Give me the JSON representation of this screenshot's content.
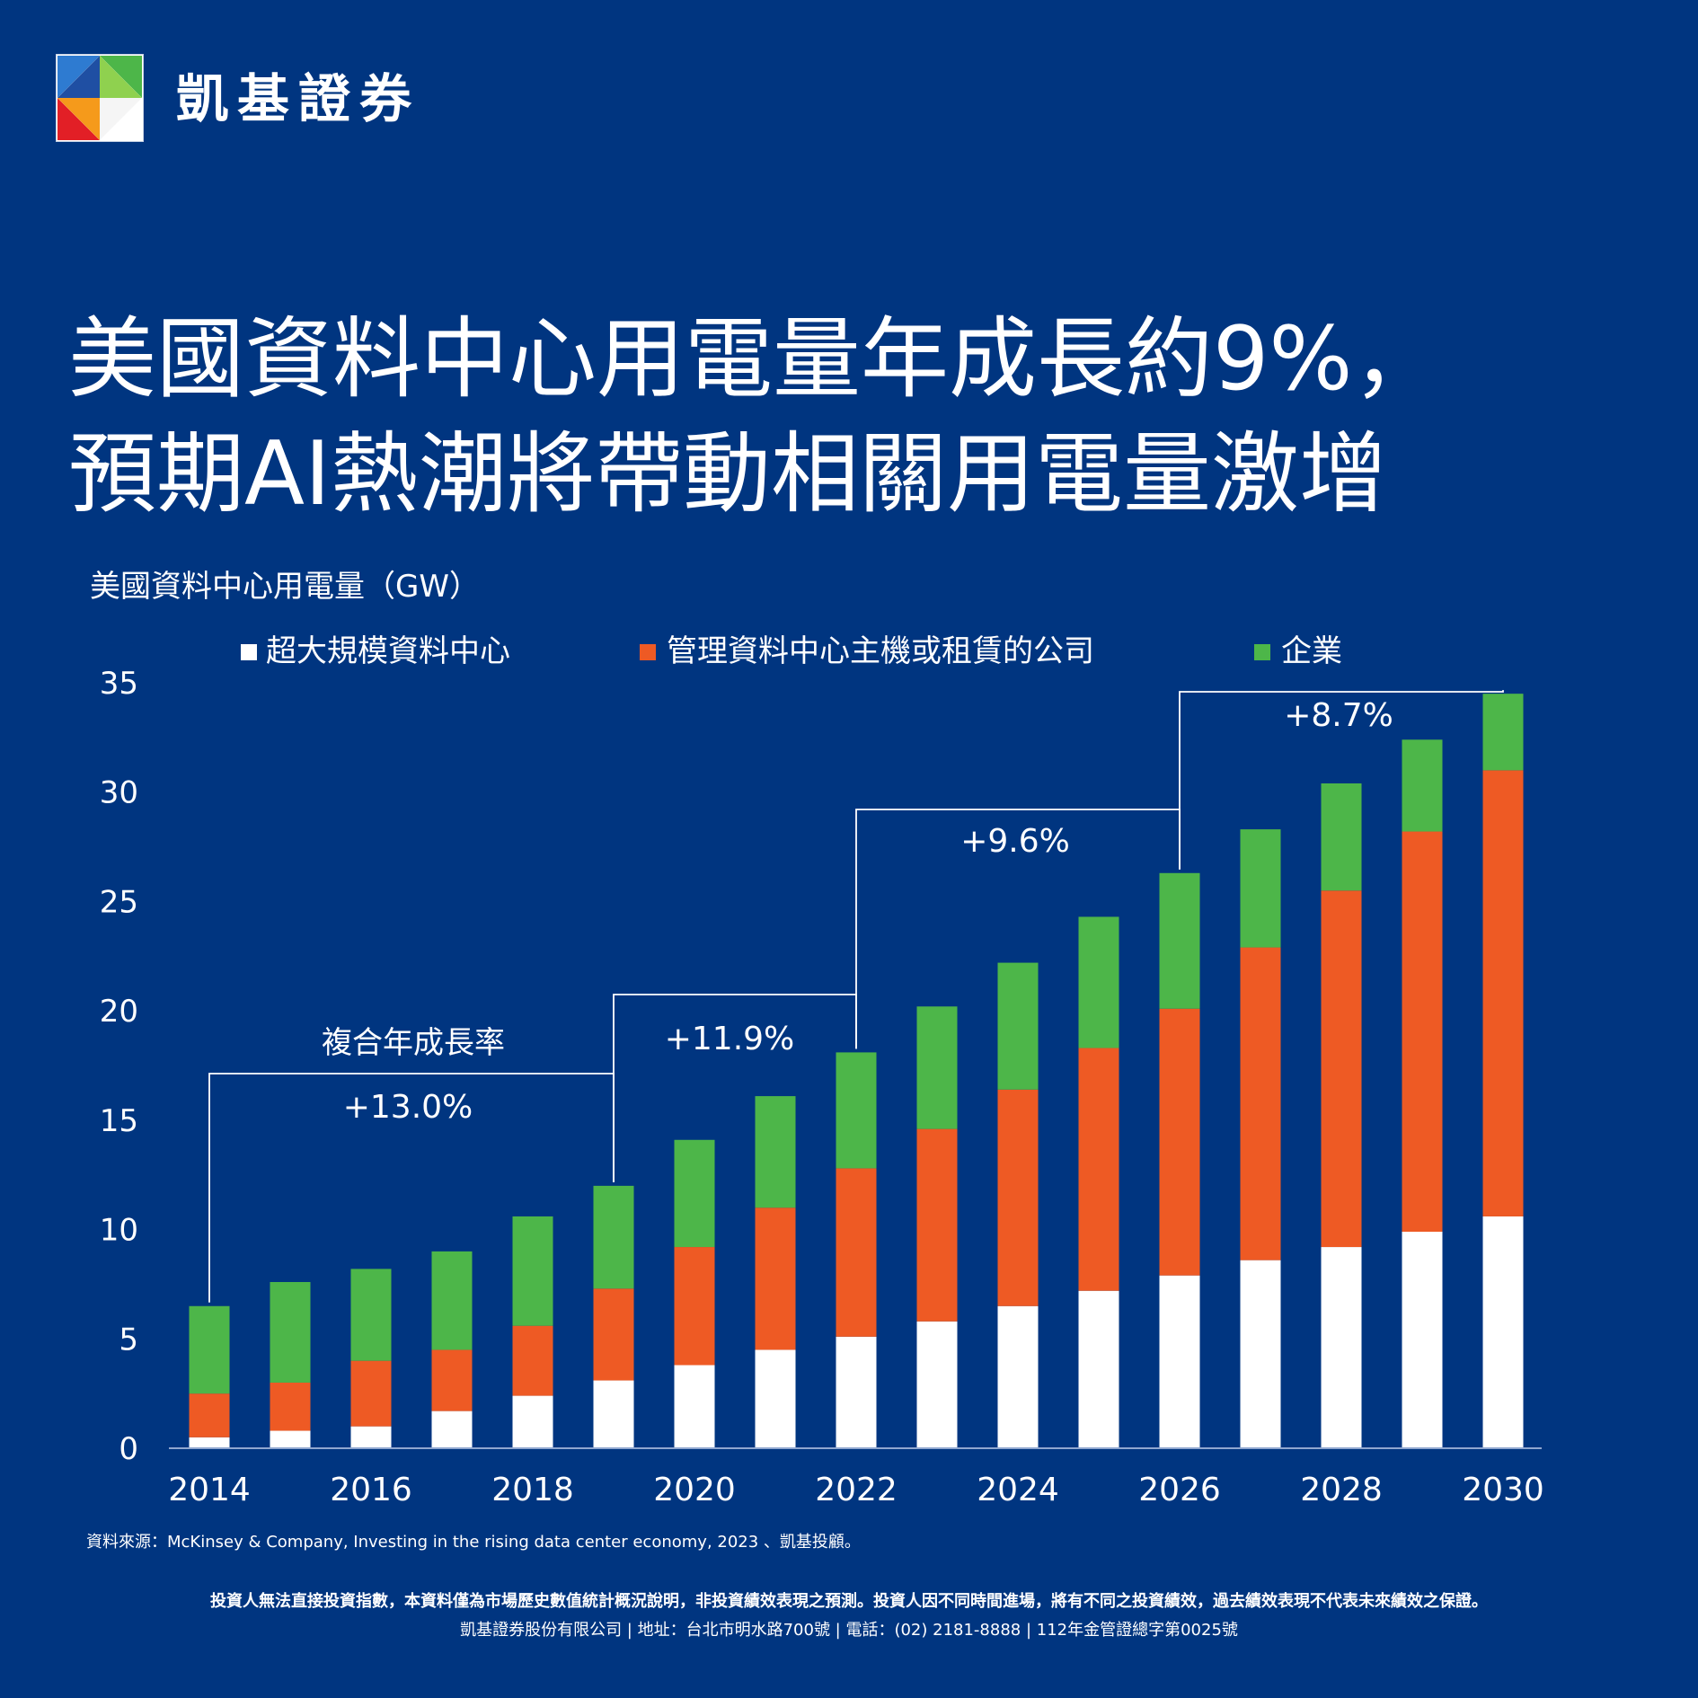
{
  "brand": {
    "name": "凱基證券"
  },
  "title": {
    "line1": "美國資料中心用電量年成長約9%，",
    "line2": "預期AI熱潮將帶動相關用電量激增"
  },
  "colors": {
    "background": "#003580",
    "hyperscale": "#ffffff",
    "colocation": "#ee5a24",
    "enterprise": "#4db649"
  },
  "chart_data": {
    "type": "bar",
    "stacked": true,
    "ylabel": "美國資料中心用電量（GW）",
    "ylim": [
      0,
      35
    ],
    "yticks": [
      "0",
      "5",
      "10",
      "15",
      "20",
      "25",
      "30",
      "35"
    ],
    "xtick_labels": [
      "2014",
      "2016",
      "2018",
      "2020",
      "2022",
      "2024",
      "2026",
      "2028",
      "2030"
    ],
    "categories": [
      "2014",
      "2015",
      "2016",
      "2017",
      "2018",
      "2019",
      "2020",
      "2021",
      "2022",
      "2023",
      "2024",
      "2025",
      "2026",
      "2027",
      "2028",
      "2029",
      "2030"
    ],
    "legend_position": "top",
    "series": [
      {
        "name": "超大規模資料中心",
        "color": "#ffffff",
        "values": [
          0.5,
          0.8,
          1.0,
          1.7,
          2.4,
          3.1,
          3.8,
          4.5,
          5.1,
          5.8,
          6.5,
          7.2,
          7.9,
          8.6,
          9.2,
          9.9,
          10.6
        ]
      },
      {
        "name": "管理資料中心主機或租賃的公司",
        "color": "#ee5a24",
        "values": [
          2.0,
          2.2,
          3.0,
          2.8,
          3.2,
          4.2,
          5.4,
          6.5,
          7.7,
          8.8,
          9.9,
          11.1,
          12.2,
          14.3,
          16.3,
          18.3,
          20.4
        ]
      },
      {
        "name": "企業",
        "color": "#4db649",
        "values": [
          4.0,
          4.6,
          4.2,
          4.5,
          5.0,
          4.7,
          4.9,
          5.1,
          5.3,
          5.6,
          5.8,
          6.0,
          6.2,
          5.4,
          4.9,
          4.2,
          3.5
        ]
      }
    ],
    "annotations": {
      "cagr_label": "複合年成長率",
      "cagr_1": "+13.0%",
      "cagr_2": "+11.9%",
      "cagr_3": "+9.6%",
      "cagr_4": "+8.7%"
    }
  },
  "source": "資料來源：McKinsey & Company, Investing in the rising data center economy, 2023 、凱基投顧。",
  "disclaimer": "投資人無法直接投資指數，本資料僅為市場歷史數值統計概況說明，非投資績效表現之預測。投資人因不同時間進場，將有不同之投資績效，過去績效表現不代表未來績效之保證。",
  "footer": "凱基證券股份有限公司 | 地址：台北市明水路700號 | 電話：(02) 2181-8888 | 112年金管證總字第0025號"
}
